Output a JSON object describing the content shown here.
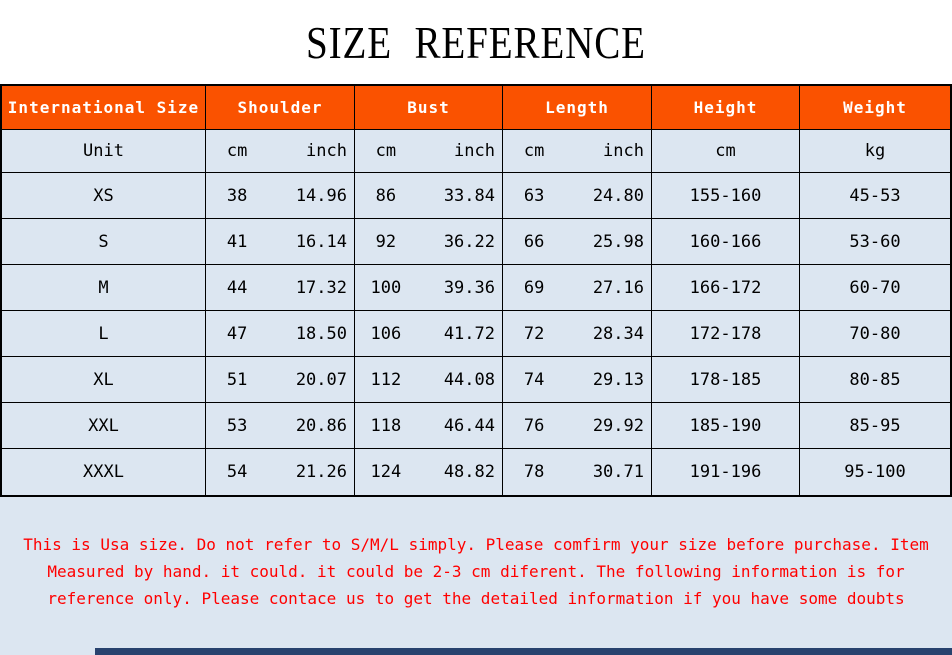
{
  "title": "SIZE REFERENCE",
  "colors": {
    "header_bg": "#fa5200",
    "header_text": "#ffffff",
    "page_bg": "#dce6f1",
    "title_band_bg": "#ffffff",
    "border": "#000000",
    "note_text": "#ff0000",
    "scrollbar": "#28426e"
  },
  "table": {
    "headers": [
      "International Size",
      "Shoulder",
      "Bust",
      "Length",
      "Height",
      "Weight"
    ],
    "unit": {
      "label": "Unit",
      "shoulder_cm": "cm",
      "shoulder_inch": "inch",
      "bust_cm": "cm",
      "bust_inch": "inch",
      "length_cm": "cm",
      "length_inch": "inch",
      "height": "cm",
      "weight": "kg"
    },
    "rows": [
      {
        "size": "XS",
        "shoulder_cm": "38",
        "shoulder_inch": "14.96",
        "bust_cm": "86",
        "bust_inch": "33.84",
        "length_cm": "63",
        "length_inch": "24.80",
        "height": "155-160",
        "weight": "45-53"
      },
      {
        "size": "S",
        "shoulder_cm": "41",
        "shoulder_inch": "16.14",
        "bust_cm": "92",
        "bust_inch": "36.22",
        "length_cm": "66",
        "length_inch": "25.98",
        "height": "160-166",
        "weight": "53-60"
      },
      {
        "size": "M",
        "shoulder_cm": "44",
        "shoulder_inch": "17.32",
        "bust_cm": "100",
        "bust_inch": "39.36",
        "length_cm": "69",
        "length_inch": "27.16",
        "height": "166-172",
        "weight": "60-70"
      },
      {
        "size": "L",
        "shoulder_cm": "47",
        "shoulder_inch": "18.50",
        "bust_cm": "106",
        "bust_inch": "41.72",
        "length_cm": "72",
        "length_inch": "28.34",
        "height": "172-178",
        "weight": "70-80"
      },
      {
        "size": "XL",
        "shoulder_cm": "51",
        "shoulder_inch": "20.07",
        "bust_cm": "112",
        "bust_inch": "44.08",
        "length_cm": "74",
        "length_inch": "29.13",
        "height": "178-185",
        "weight": "80-85"
      },
      {
        "size": "XXL",
        "shoulder_cm": "53",
        "shoulder_inch": "20.86",
        "bust_cm": "118",
        "bust_inch": "46.44",
        "length_cm": "76",
        "length_inch": "29.92",
        "height": "185-190",
        "weight": "85-95"
      },
      {
        "size": "XXXL",
        "shoulder_cm": "54",
        "shoulder_inch": "21.26",
        "bust_cm": "124",
        "bust_inch": "48.82",
        "length_cm": "78",
        "length_inch": "30.71",
        "height": "191-196",
        "weight": "95-100"
      }
    ]
  },
  "note": {
    "lines": [
      "This is Usa size. Do not refer to S/M/L simply. Please comfirm your size before purchase. Item",
      "Measured by hand. it could. it could be 2-3 cm diferent. The following information is for",
      "reference only. Please contace us to get the detailed information if you have some doubts"
    ]
  },
  "chart_data": {
    "type": "table",
    "title": "SIZE REFERENCE",
    "columns": [
      "International Size",
      "Shoulder cm",
      "Shoulder inch",
      "Bust cm",
      "Bust inch",
      "Length cm",
      "Length inch",
      "Height cm",
      "Weight kg"
    ],
    "rows": [
      [
        "XS",
        38,
        14.96,
        86,
        33.84,
        63,
        24.8,
        "155-160",
        "45-53"
      ],
      [
        "S",
        41,
        16.14,
        92,
        36.22,
        66,
        25.98,
        "160-166",
        "53-60"
      ],
      [
        "M",
        44,
        17.32,
        100,
        39.36,
        69,
        27.16,
        "166-172",
        "60-70"
      ],
      [
        "L",
        47,
        18.5,
        106,
        41.72,
        72,
        28.34,
        "172-178",
        "70-80"
      ],
      [
        "XL",
        51,
        20.07,
        112,
        44.08,
        74,
        29.13,
        "178-185",
        "80-85"
      ],
      [
        "XXL",
        53,
        20.86,
        118,
        46.44,
        76,
        29.92,
        "185-190",
        "85-95"
      ],
      [
        "XXXL",
        54,
        21.26,
        124,
        48.82,
        78,
        30.71,
        "191-196",
        "95-100"
      ]
    ]
  }
}
